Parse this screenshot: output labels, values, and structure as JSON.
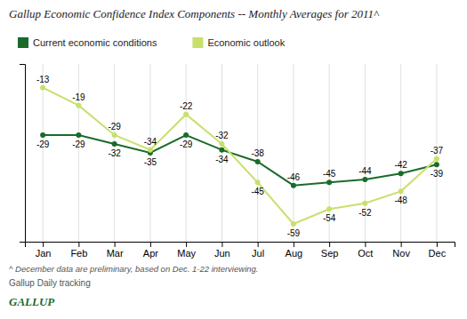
{
  "chart_data": {
    "type": "line",
    "title": "Gallup Economic Confidence Index Components -- Monthly Averages for 2011^",
    "categories": [
      "Jan",
      "Feb",
      "Mar",
      "Apr",
      "May",
      "Jun",
      "Jul",
      "Aug",
      "Sep",
      "Oct",
      "Nov",
      "Dec"
    ],
    "series": [
      {
        "name": "Current economic conditions",
        "color": "#1a6b2a",
        "marker": "circle",
        "values": [
          -29,
          -29,
          -32,
          -35,
          -29,
          -34,
          -38,
          -46,
          -45,
          -44,
          -42,
          -39
        ]
      },
      {
        "name": "Economic outlook",
        "color": "#c8e06b",
        "marker": "circle",
        "values": [
          -13,
          -19,
          -29,
          -34,
          -22,
          -32,
          -45,
          -59,
          -54,
          -52,
          -48,
          -37
        ]
      }
    ],
    "ylim": [
      -65,
      -5
    ],
    "grid": "x",
    "legend": "top",
    "data_labels": true,
    "tick_labels": "x",
    "annotations": [
      "^ December data are preliminary, based on Dec. 1-22 interviewing.",
      "Gallup Daily tracking",
      "GALLUP"
    ]
  }
}
